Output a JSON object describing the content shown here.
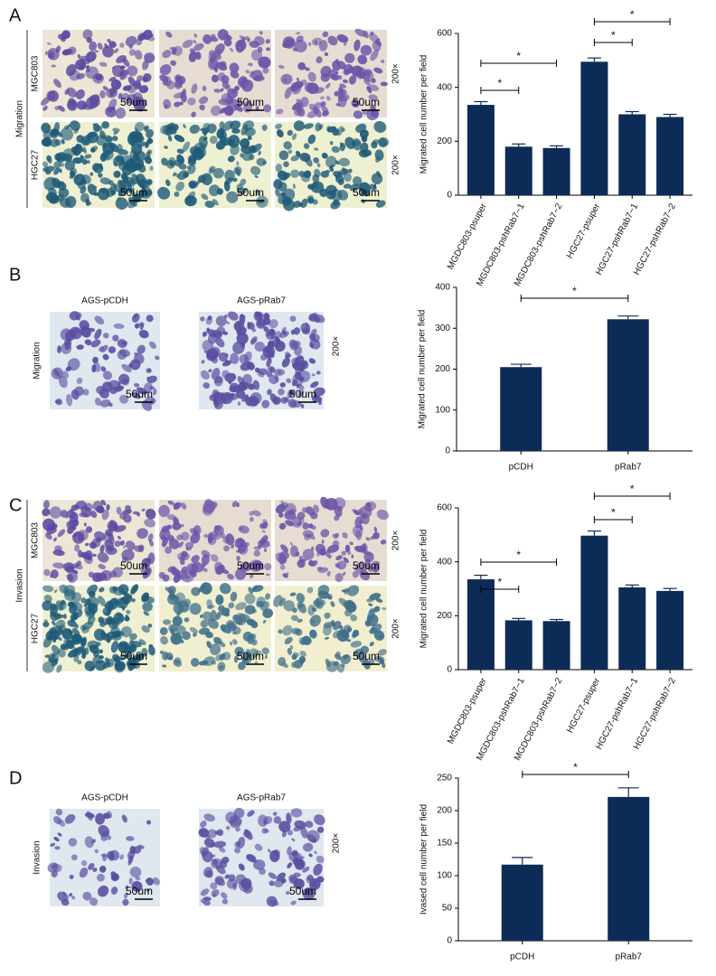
{
  "panels": [
    {
      "letter": "A",
      "side_label": "Migration",
      "row_labels": [
        "MGC803",
        "HGC27"
      ],
      "magnification": "200×",
      "scale": "50um"
    },
    {
      "letter": "B",
      "side_label": "Migration",
      "col_labels": [
        "AGS-pCDH",
        "AGS-pRab7"
      ],
      "magnification": "200×",
      "scale": "50um"
    },
    {
      "letter": "C",
      "side_label": "Invasion",
      "row_labels": [
        "MGC803",
        "HGC27"
      ],
      "magnification": "200×",
      "scale": "50um"
    },
    {
      "letter": "D",
      "side_label": "Invasion",
      "col_labels": [
        "AGS-pCDH",
        "AGS-pRab7"
      ],
      "magnification": "200×",
      "scale": "50um"
    }
  ],
  "chart_data": [
    {
      "type": "bar",
      "y_label": "Migrated cell number per field",
      "color": "#0d2b57",
      "categories": [
        "MGDC803-psuper",
        "MGDC803-pshRab7−1",
        "MGDC803-pshRab7−2",
        "HGC27-psuper",
        "HGC27-pshRab7−1",
        "HGC27-pshRab7−2"
      ],
      "values": [
        335,
        180,
        175,
        495,
        300,
        290
      ],
      "error": [
        12,
        10,
        8,
        14,
        10,
        10
      ],
      "ylim": [
        0,
        600
      ],
      "yticks": [
        0,
        200,
        400,
        600
      ],
      "annotations": [
        {
          "text": "*",
          "between": [
            "MGDC803-psuper",
            "MGDC803-pshRab7−1"
          ]
        },
        {
          "text": "*",
          "between": [
            "MGDC803-psuper",
            "MGDC803-pshRab7−2"
          ]
        },
        {
          "text": "*",
          "between": [
            "HGC27-psuper",
            "HGC27-pshRab7−1"
          ]
        },
        {
          "text": "*",
          "between": [
            "HGC27-psuper",
            "HGC27-pshRab7−2"
          ]
        }
      ]
    },
    {
      "type": "bar",
      "y_label": "Migrated cell number per field",
      "color": "#0d2b57",
      "categories": [
        "pCDH",
        "pRab7"
      ],
      "values": [
        205,
        322
      ],
      "error": [
        7,
        8
      ],
      "ylim": [
        0,
        400
      ],
      "yticks": [
        0,
        100,
        200,
        300,
        400
      ],
      "annotations": [
        {
          "text": "*",
          "between": [
            "pCDH",
            "pRab7"
          ]
        }
      ]
    },
    {
      "type": "bar",
      "y_label": "Migrated cell number per field",
      "color": "#0d2b57",
      "categories": [
        "MGDC803-psuper",
        "MGDC803-pshRab7−1",
        "MGDC803-pshRab7−2",
        "HGC27-psuper",
        "HGC27-pshRab7−1",
        "HGC27-pshRab7−2"
      ],
      "values": [
        335,
        183,
        180,
        497,
        305,
        292
      ],
      "error": [
        15,
        7,
        6,
        17,
        9,
        9
      ],
      "ylim": [
        0,
        600
      ],
      "yticks": [
        0,
        200,
        400,
        600
      ],
      "annotations": [
        {
          "text": "*",
          "between": [
            "MGDC803-psuper",
            "MGDC803-pshRab7−1"
          ]
        },
        {
          "text": "*",
          "between": [
            "MGDC803-psuper",
            "MGDC803-pshRab7−2"
          ]
        },
        {
          "text": "*",
          "between": [
            "HGC27-psuper",
            "HGC27-pshRab7−1"
          ]
        },
        {
          "text": "*",
          "between": [
            "HGC27-psuper",
            "HGC27-pshRab7−2"
          ]
        }
      ]
    },
    {
      "type": "bar",
      "y_label": "Ivased cell number per field",
      "color": "#0d2b57",
      "categories": [
        "pCDH",
        "pRab7"
      ],
      "values": [
        117,
        221
      ],
      "error": [
        11,
        14
      ],
      "ylim": [
        0,
        250
      ],
      "yticks": [
        0,
        50,
        100,
        150,
        200,
        250
      ],
      "annotations": [
        {
          "text": "*",
          "between": [
            "pCDH",
            "pRab7"
          ]
        }
      ]
    }
  ]
}
